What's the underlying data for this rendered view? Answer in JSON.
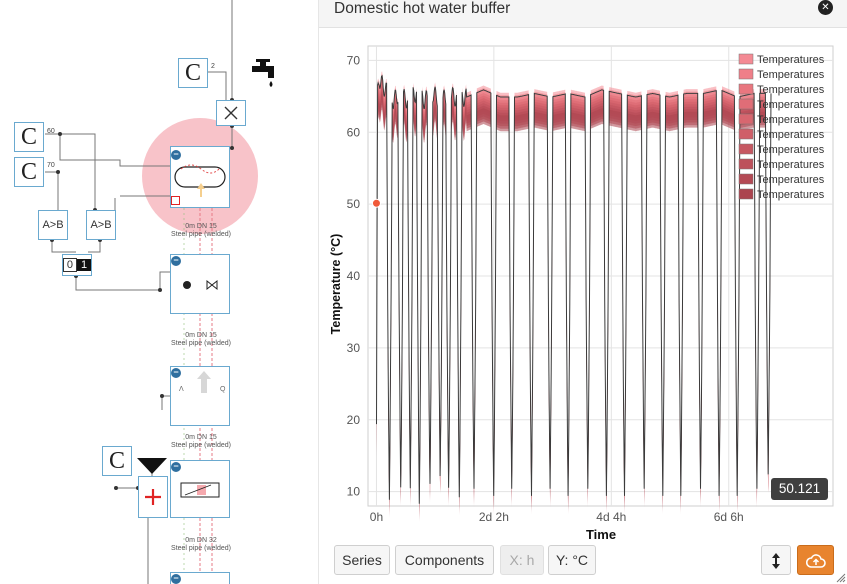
{
  "panel": {
    "title": "Domestic hot water buffer",
    "close_icon": "close-icon",
    "value_badge": "50.121"
  },
  "toolbar": {
    "series_label": "Series",
    "components_label": "Components",
    "x_unit_label": "X: h",
    "y_unit_label": "Y: °C",
    "expand_icon": "vertical-arrows-icon",
    "cloud_icon": "cloud-upload-icon",
    "accent_color": "#e8842e"
  },
  "schematic": {
    "const_label": "C",
    "const_values": [
      "2",
      "60",
      "70"
    ],
    "compare_label": "A>B",
    "logic_label_0": "0",
    "logic_label_1": "1",
    "pipe_note_1": "0m DN 15",
    "pipe_note_1b": "Steel pipe (welded)",
    "pipe_note_2": "0m DN 15",
    "pipe_note_2b": "Steel pipe (welded)",
    "pipe_note_3": "0m DN 15",
    "pipe_note_3b": "Steel pipe (welded)",
    "pipe_note_4": "0m DN 32",
    "pipe_note_4b": "Steel pipe (welded)",
    "selection_color": "#f7b9bf",
    "block_border_color": "#6aa9cf"
  },
  "chart_data": {
    "type": "area",
    "title": "",
    "xlabel": "Time",
    "ylabel": "Temperature (°C)",
    "xlim": [
      -0.15,
      8.1
    ],
    "ylim": [
      8,
      72
    ],
    "grid": true,
    "legend_position": "top-right",
    "x_tick_labels": [
      "0h",
      "2d 2h",
      "4d 4h",
      "6d 6h"
    ],
    "x_ticks": [
      0,
      2.083,
      4.167,
      6.25
    ],
    "y_ticks": [
      10,
      20,
      30,
      40,
      50,
      60,
      70
    ],
    "series": [
      {
        "name": "Temperatures",
        "color": "#f48a94"
      },
      {
        "name": "Temperatures",
        "color": "#ef7f89"
      },
      {
        "name": "Temperatures",
        "color": "#e9767f"
      },
      {
        "name": "Temperatures",
        "color": "#e06d77"
      },
      {
        "name": "Temperatures",
        "color": "#d8666f"
      },
      {
        "name": "Temperatures",
        "color": "#cf5f68"
      },
      {
        "name": "Temperatures",
        "color": "#c65862"
      },
      {
        "name": "Temperatures",
        "color": "#bd515b"
      },
      {
        "name": "Temperatures",
        "color": "#b44a55"
      },
      {
        "name": "Temperatures",
        "color": "#ab444f"
      }
    ],
    "band_upper_x": [
      0,
      0.02,
      0.05,
      0.12,
      0.2,
      0.3,
      0.4,
      0.55,
      0.7,
      0.85,
      1.0,
      1.15,
      1.3,
      1.45,
      1.6,
      1.9,
      2.2,
      2.5,
      2.8,
      3.1,
      3.4,
      3.7,
      4.0,
      4.3,
      4.6,
      4.9,
      5.2,
      5.5,
      5.8,
      6.1,
      6.4,
      6.7,
      7.0
    ],
    "band_upper_y": [
      20,
      66,
      68,
      67,
      66,
      65,
      66,
      65,
      66,
      65,
      66,
      65,
      66,
      65,
      65.5,
      66.5,
      65.5,
      65.5,
      66,
      65.5,
      66,
      65.5,
      66.5,
      66,
      65.5,
      66,
      65.5,
      66,
      66,
      66.5,
      65.5,
      66,
      66
    ],
    "dip_x": [
      0.23,
      0.43,
      0.6,
      0.76,
      0.95,
      1.13,
      1.28,
      1.47,
      1.73,
      2.08,
      2.4,
      2.75,
      3.08,
      3.4,
      3.75,
      4.08,
      4.4,
      4.75,
      5.08,
      5.4,
      5.75,
      6.08,
      6.4,
      6.75,
      6.95
    ],
    "dip_min_y": [
      10,
      11,
      12,
      10,
      11,
      12,
      10,
      11,
      11,
      10,
      11,
      10,
      11,
      10,
      11,
      10,
      10,
      11,
      10,
      10,
      11,
      10,
      10,
      11,
      13
    ],
    "marker": {
      "x": 0.0,
      "y": 50.121
    }
  }
}
